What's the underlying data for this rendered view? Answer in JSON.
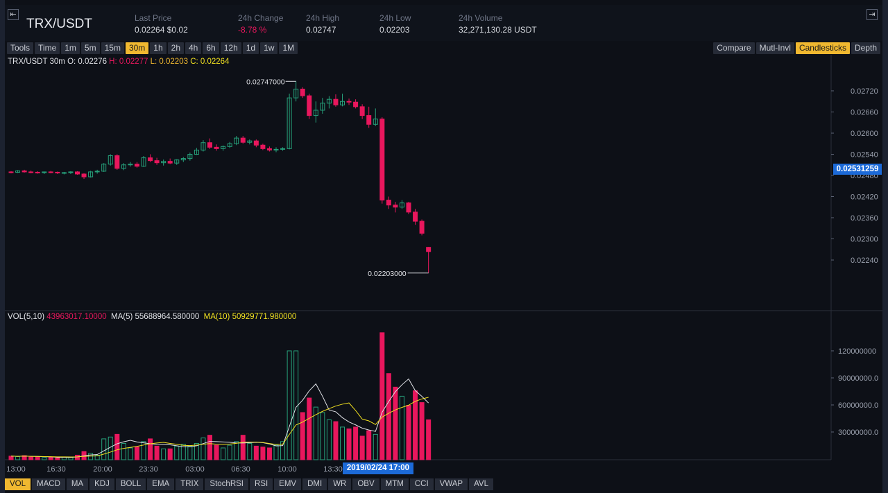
{
  "header": {
    "symbol": "TRX/USDT",
    "stats": [
      {
        "label": "Last Price",
        "value": "0.02264 $0.02",
        "color": "#d5d8de"
      },
      {
        "label": "24h Change",
        "value": "-8.78 %",
        "color": "#e8175d"
      },
      {
        "label": "24h High",
        "value": "0.02747",
        "color": "#d5d8de"
      },
      {
        "label": "24h Low",
        "value": "0.02203",
        "color": "#d5d8de"
      },
      {
        "label": "24h Volume",
        "value": "32,271,130.28 USDT",
        "color": "#d5d8de"
      }
    ]
  },
  "toolbar": {
    "intervals": [
      "Tools",
      "Time",
      "1m",
      "5m",
      "15m",
      "30m",
      "1h",
      "2h",
      "4h",
      "6h",
      "12h",
      "1d",
      "1w",
      "1M"
    ],
    "active_interval": "30m",
    "views": [
      "Compare",
      "Mutl-Invl",
      "Candlesticks",
      "Depth"
    ],
    "active_view": "Candlesticks"
  },
  "legend": {
    "pair_interval": "TRX/USDT 30m",
    "open": "O: 0.02276",
    "high": "H: 0.02277",
    "low": "L: 0.02203",
    "close": "C: 0.02264",
    "vol_label": "VOL(5,10)",
    "vol_value": "43963017.10000",
    "ma5_label": "MA(5)",
    "ma5_value": "55688964.580000",
    "ma10_label": "MA(10)",
    "ma10_value": "50929771.980000"
  },
  "annotations": {
    "high_marker": "0.02747000",
    "low_marker": "0.02203000",
    "current_price": "0.02531259",
    "crosshair_time": "2019/02/24 17:00"
  },
  "price_axis": [
    "0.02720",
    "0.02660",
    "0.02600",
    "0.02540",
    "0.02480",
    "0.02420",
    "0.02360",
    "0.02300",
    "0.02240"
  ],
  "volume_axis": [
    "120000000",
    "90000000.0",
    "60000000.0",
    "30000000.0"
  ],
  "time_axis": [
    "13:00",
    "16:30",
    "20:00",
    "23:30",
    "03:00",
    "06:30",
    "10:00",
    "13:30"
  ],
  "indicators": [
    "VOL",
    "MACD",
    "MA",
    "KDJ",
    "BOLL",
    "EMA",
    "TRIX",
    "StochRSI",
    "RSI",
    "EMV",
    "DMI",
    "WR",
    "OBV",
    "MTM",
    "CCI",
    "VWAP",
    "AVL"
  ],
  "active_indicator": "VOL",
  "colors": {
    "up": "#26a17b",
    "down": "#e8175d",
    "accent": "#f0b830",
    "crosshair": "#1c6ad8"
  },
  "chart_data": {
    "type": "candlestick",
    "price_ylim": [
      0.0221,
      0.0276
    ],
    "candles_ohlc": [
      [
        0.0249,
        0.02492,
        0.02486,
        0.02489
      ],
      [
        0.02489,
        0.02495,
        0.02487,
        0.02493
      ],
      [
        0.02493,
        0.02496,
        0.02488,
        0.0249
      ],
      [
        0.0249,
        0.02494,
        0.02486,
        0.02489
      ],
      [
        0.02489,
        0.02492,
        0.02485,
        0.02488
      ],
      [
        0.02488,
        0.02491,
        0.02484,
        0.0249
      ],
      [
        0.0249,
        0.02493,
        0.02486,
        0.02489
      ],
      [
        0.02489,
        0.02491,
        0.02484,
        0.02487
      ],
      [
        0.02487,
        0.0249,
        0.02483,
        0.02488
      ],
      [
        0.02488,
        0.02492,
        0.02484,
        0.0249
      ],
      [
        0.0249,
        0.02492,
        0.02482,
        0.02484
      ],
      [
        0.02484,
        0.02486,
        0.0247,
        0.02476
      ],
      [
        0.02476,
        0.02493,
        0.02474,
        0.0249
      ],
      [
        0.0249,
        0.02496,
        0.02485,
        0.02492
      ],
      [
        0.02492,
        0.02515,
        0.0249,
        0.02512
      ],
      [
        0.02512,
        0.0254,
        0.02508,
        0.02536
      ],
      [
        0.02536,
        0.0254,
        0.02496,
        0.025
      ],
      [
        0.025,
        0.02515,
        0.02495,
        0.0251
      ],
      [
        0.0251,
        0.02518,
        0.02505,
        0.02512
      ],
      [
        0.02512,
        0.02518,
        0.02502,
        0.02506
      ],
      [
        0.02506,
        0.02535,
        0.02504,
        0.0253
      ],
      [
        0.0253,
        0.0254,
        0.02518,
        0.02522
      ],
      [
        0.02522,
        0.0253,
        0.0251,
        0.02516
      ],
      [
        0.02516,
        0.02525,
        0.02508,
        0.0252
      ],
      [
        0.0252,
        0.02528,
        0.02512,
        0.02515
      ],
      [
        0.02515,
        0.02526,
        0.0251,
        0.02524
      ],
      [
        0.02524,
        0.02532,
        0.02518,
        0.02528
      ],
      [
        0.02528,
        0.02545,
        0.02522,
        0.0254
      ],
      [
        0.0254,
        0.02558,
        0.02538,
        0.02552
      ],
      [
        0.02552,
        0.0258,
        0.02548,
        0.02573
      ],
      [
        0.02573,
        0.02585,
        0.02555,
        0.0256
      ],
      [
        0.0256,
        0.02568,
        0.0255,
        0.02556
      ],
      [
        0.02556,
        0.02565,
        0.0255,
        0.02562
      ],
      [
        0.02562,
        0.02575,
        0.02558,
        0.0257
      ],
      [
        0.0257,
        0.02592,
        0.02566,
        0.02586
      ],
      [
        0.02586,
        0.02592,
        0.0257,
        0.02574
      ],
      [
        0.02574,
        0.02582,
        0.02568,
        0.02578
      ],
      [
        0.02578,
        0.02582,
        0.0256,
        0.02566
      ],
      [
        0.02566,
        0.0257,
        0.02552,
        0.02556
      ],
      [
        0.02556,
        0.02562,
        0.02548,
        0.02552
      ],
      [
        0.02552,
        0.0256,
        0.02546,
        0.02554
      ],
      [
        0.02554,
        0.0256,
        0.0255,
        0.02556
      ],
      [
        0.02556,
        0.02712,
        0.02554,
        0.027
      ],
      [
        0.027,
        0.02747,
        0.0269,
        0.02725
      ],
      [
        0.02725,
        0.0273,
        0.027,
        0.02706
      ],
      [
        0.02706,
        0.02712,
        0.0264,
        0.0265
      ],
      [
        0.0265,
        0.0269,
        0.0263,
        0.02665
      ],
      [
        0.02665,
        0.027,
        0.02655,
        0.02685
      ],
      [
        0.02685,
        0.02705,
        0.0267,
        0.02696
      ],
      [
        0.02696,
        0.0271,
        0.02675,
        0.0268
      ],
      [
        0.0268,
        0.02712,
        0.02676,
        0.0269
      ],
      [
        0.0269,
        0.02698,
        0.0268,
        0.02688
      ],
      [
        0.02688,
        0.02696,
        0.0267,
        0.02675
      ],
      [
        0.02675,
        0.02682,
        0.0264,
        0.0265
      ],
      [
        0.0265,
        0.02675,
        0.02615,
        0.02625
      ],
      [
        0.02625,
        0.0267,
        0.0262,
        0.0264
      ],
      [
        0.0264,
        0.02645,
        0.024,
        0.0241
      ],
      [
        0.0241,
        0.0242,
        0.02385,
        0.02396
      ],
      [
        0.02396,
        0.02405,
        0.02375,
        0.0239
      ],
      [
        0.0239,
        0.0241,
        0.02385,
        0.02402
      ],
      [
        0.02402,
        0.02405,
        0.0237,
        0.02376
      ],
      [
        0.02376,
        0.02385,
        0.0234,
        0.0235
      ],
      [
        0.0235,
        0.02355,
        0.0231,
        0.02316
      ],
      [
        0.02276,
        0.02277,
        0.02203,
        0.02264
      ]
    ],
    "volumes": [
      4000000.0,
      3500000.0,
      4500000.0,
      3000000.0,
      3000000.0,
      2500000.0,
      3000000.0,
      2000000.0,
      3000000.0,
      2500000.0,
      5000000.0,
      9000000.0,
      7000000.0,
      5000000.0,
      23000000.0,
      25000000.0,
      28000000.0,
      18000000.0,
      13000000.0,
      14000000.0,
      20000000.0,
      23000000.0,
      15000000.0,
      12000000.0,
      12000000.0,
      15000000.0,
      17000000.0,
      15000000.0,
      18000000.0,
      24000000.0,
      27000000.0,
      16000000.0,
      13000000.0,
      16000000.0,
      20000000.0,
      27000000.0,
      18000000.0,
      15000000.0,
      14000000.0,
      13000000.0,
      16000000.0,
      20000000.0,
      120000000.0,
      120000000.0,
      52000000.0,
      68000000.0,
      58000000.0,
      52000000.0,
      44000000.0,
      42000000.0,
      36000000.0,
      34000000.0,
      36000000.0,
      26000000.0,
      32000000.0,
      28000000.0,
      140000000.0,
      95000000.0,
      80000000.0,
      70000000.0,
      60000000.0,
      76000000.0,
      63000000.0,
      44000000.0
    ],
    "vol_ylim": [
      0,
      140000000
    ]
  }
}
